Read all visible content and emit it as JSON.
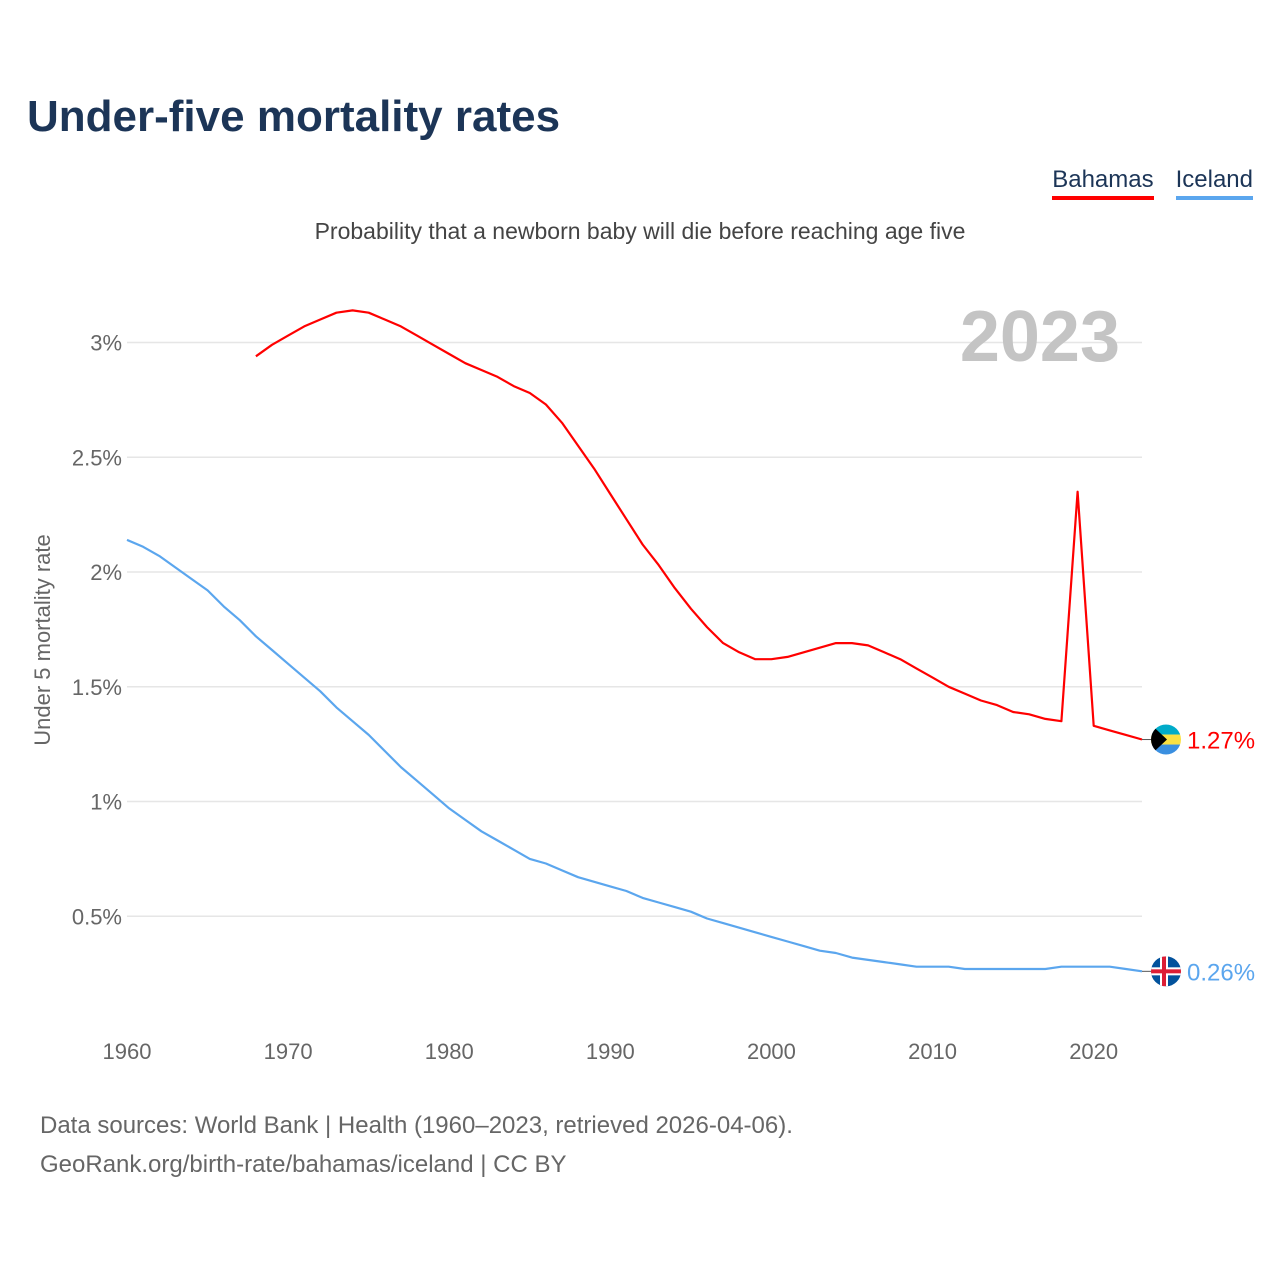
{
  "chart_data": {
    "type": "line",
    "title": "Under-five mortality rates",
    "subtitle": "Probability that a newborn baby will die before reaching age five",
    "ylabel": "Under 5 mortality rate",
    "xlabel": "",
    "year_label": "2023",
    "xlim": [
      1960,
      2023
    ],
    "ylim": [
      0,
      3.2
    ],
    "x_ticks": [
      "1960",
      "1970",
      "1980",
      "1990",
      "2000",
      "2010",
      "2020"
    ],
    "y_ticks": [
      {
        "v": 0.5,
        "label": "0.5%"
      },
      {
        "v": 1,
        "label": "1%"
      },
      {
        "v": 1.5,
        "label": "1.5%"
      },
      {
        "v": 2,
        "label": "2%"
      },
      {
        "v": 2.5,
        "label": "2.5%"
      },
      {
        "v": 3,
        "label": "3%"
      }
    ],
    "legend_position": "top-right",
    "series": [
      {
        "name": "Bahamas",
        "color": "#ff0000",
        "end_label": "1.27%",
        "start_year": 1968,
        "values": [
          2.94,
          2.99,
          3.03,
          3.07,
          3.1,
          3.13,
          3.14,
          3.13,
          3.1,
          3.07,
          3.03,
          2.99,
          2.95,
          2.91,
          2.88,
          2.85,
          2.81,
          2.78,
          2.73,
          2.65,
          2.55,
          2.45,
          2.34,
          2.23,
          2.12,
          2.03,
          1.93,
          1.84,
          1.76,
          1.69,
          1.65,
          1.62,
          1.62,
          1.63,
          1.65,
          1.67,
          1.69,
          1.69,
          1.68,
          1.65,
          1.62,
          1.58,
          1.54,
          1.5,
          1.47,
          1.44,
          1.42,
          1.39,
          1.38,
          1.36,
          1.35,
          2.35,
          1.33,
          1.31,
          1.29,
          1.27
        ]
      },
      {
        "name": "Iceland",
        "color": "#5ba6ee",
        "end_label": "0.26%",
        "start_year": 1960,
        "values": [
          2.14,
          2.11,
          2.07,
          2.02,
          1.97,
          1.92,
          1.85,
          1.79,
          1.72,
          1.66,
          1.6,
          1.54,
          1.48,
          1.41,
          1.35,
          1.29,
          1.22,
          1.15,
          1.09,
          1.03,
          0.97,
          0.92,
          0.87,
          0.83,
          0.79,
          0.75,
          0.73,
          0.7,
          0.67,
          0.65,
          0.63,
          0.61,
          0.58,
          0.56,
          0.54,
          0.52,
          0.49,
          0.47,
          0.45,
          0.43,
          0.41,
          0.39,
          0.37,
          0.35,
          0.34,
          0.32,
          0.31,
          0.3,
          0.29,
          0.28,
          0.28,
          0.28,
          0.27,
          0.27,
          0.27,
          0.27,
          0.27,
          0.27,
          0.28,
          0.28,
          0.28,
          0.28,
          0.27,
          0.26
        ]
      }
    ]
  },
  "footer": {
    "line1": "Data sources: World Bank | Health (1960–2023, retrieved 2026-04-06).",
    "line2": "GeoRank.org/birth-rate/bahamas/iceland | CC BY"
  }
}
